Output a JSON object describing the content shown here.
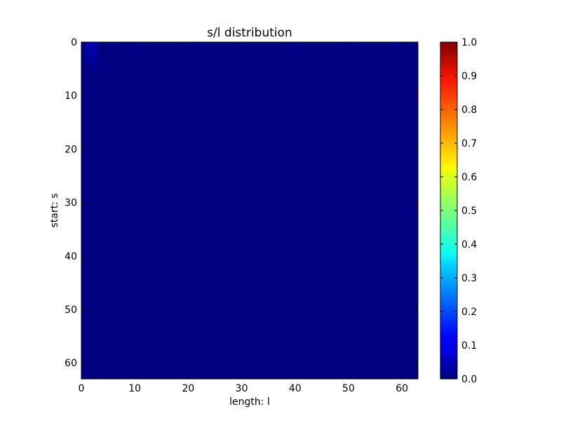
{
  "chart_data": {
    "type": "heatmap",
    "title": "s/l distribution",
    "xlabel": "length: l",
    "ylabel": "start: s",
    "xlim": [
      0,
      63
    ],
    "ylim": [
      63,
      0
    ],
    "x_ticks": [
      0,
      10,
      20,
      30,
      40,
      50,
      60
    ],
    "y_ticks": [
      0,
      10,
      20,
      30,
      40,
      50,
      60
    ],
    "grid": false,
    "colormap": "jet",
    "colorbar": {
      "range": [
        0.0,
        1.0
      ],
      "ticks": [
        0.0,
        0.1,
        0.2,
        0.3,
        0.4,
        0.5,
        0.6,
        0.7,
        0.8,
        0.9,
        1.0
      ],
      "tick_labels": [
        "0.0",
        "0.1",
        "0.2",
        "0.3",
        "0.4",
        "0.5",
        "0.6",
        "0.7",
        "0.8",
        "0.9",
        "1.0"
      ]
    },
    "background_value": 0.0,
    "nonzero_cells": [
      {
        "s": 0,
        "l": 1,
        "value": 0.06
      },
      {
        "s": 0,
        "l": 2,
        "value": 0.04
      },
      {
        "s": 1,
        "l": 1,
        "value": 0.05
      },
      {
        "s": 1,
        "l": 2,
        "value": 0.04
      },
      {
        "s": 2,
        "l": 1,
        "value": 0.04
      },
      {
        "s": 2,
        "l": 2,
        "value": 0.03
      },
      {
        "s": 3,
        "l": 1,
        "value": 0.03
      },
      {
        "s": 3,
        "l": 2,
        "value": 0.02
      },
      {
        "s": 4,
        "l": 2,
        "value": 0.02
      },
      {
        "s": 0,
        "l": 10,
        "value": 0.01
      },
      {
        "s": 0,
        "l": 20,
        "value": 0.01
      },
      {
        "s": 0,
        "l": 30,
        "value": 0.01
      },
      {
        "s": 0,
        "l": 40,
        "value": 0.01
      },
      {
        "s": 0,
        "l": 50,
        "value": 0.01
      },
      {
        "s": 0,
        "l": 60,
        "value": 0.01
      }
    ]
  }
}
